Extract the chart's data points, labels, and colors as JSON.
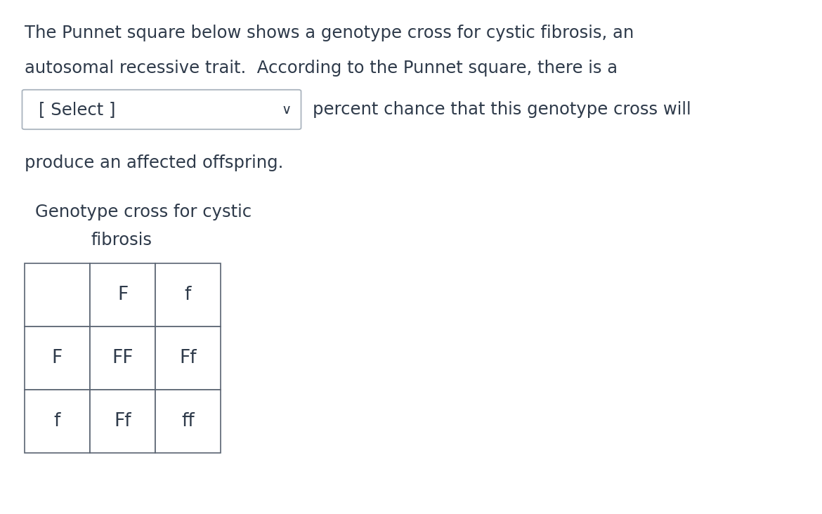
{
  "background_color": "#ffffff",
  "text_color": "#2e3a4a",
  "line1": "The Punnet square below shows a genotype cross for cystic fibrosis, an",
  "line2": "autosomal recessive trait.  According to the Punnet square, there is a",
  "line3": "percent chance that this genotype cross will",
  "line4": "produce an affected offspring.",
  "select_label": "[ Select ]",
  "chart_title_line1": "Genotype cross for cystic",
  "chart_title_line2": "fibrosis",
  "grid": [
    [
      "",
      "F",
      "f"
    ],
    [
      "F",
      "FF",
      "Ff"
    ],
    [
      "f",
      "Ff",
      "ff"
    ]
  ],
  "text_fontsize": 17.5,
  "cell_fontsize": 19,
  "title_fontsize": 17.5,
  "select_fontsize": 17.5
}
